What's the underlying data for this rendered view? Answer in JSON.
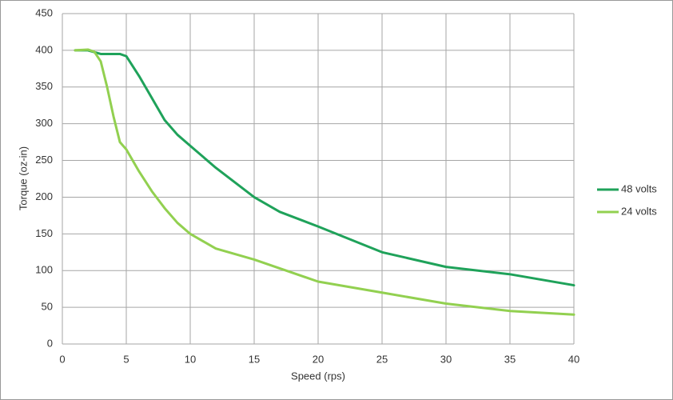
{
  "chart_data": {
    "type": "line",
    "x_label": "Speed (rps)",
    "y_label": "Torque (oz-in)",
    "xlim": [
      0,
      40
    ],
    "xticks": [
      0,
      5,
      10,
      15,
      20,
      25,
      30,
      35,
      40
    ],
    "ylim": [
      0,
      450
    ],
    "yticks": [
      0,
      50,
      100,
      150,
      200,
      250,
      300,
      350,
      400,
      450
    ],
    "grid": true,
    "legend": "right",
    "series": [
      {
        "name": "48 volts",
        "color": "#1fa25a",
        "x": [
          1,
          2,
          3,
          4,
          4.5,
          5,
          6,
          7,
          8,
          9,
          10,
          12,
          15,
          17,
          20,
          25,
          30,
          35,
          40
        ],
        "values": [
          400,
          400,
          395,
          395,
          395,
          392,
          365,
          335,
          305,
          285,
          270,
          240,
          200,
          180,
          160,
          125,
          105,
          95,
          80
        ]
      },
      {
        "name": "24 volts",
        "color": "#92d050",
        "x": [
          1,
          2,
          2.5,
          3,
          3.5,
          4,
          4.5,
          5,
          6,
          7,
          8,
          9,
          10,
          12,
          15,
          20,
          25,
          30,
          35,
          40
        ],
        "values": [
          400,
          401,
          398,
          385,
          350,
          310,
          275,
          265,
          235,
          208,
          185,
          165,
          150,
          130,
          115,
          85,
          70,
          55,
          45,
          40
        ]
      }
    ]
  }
}
